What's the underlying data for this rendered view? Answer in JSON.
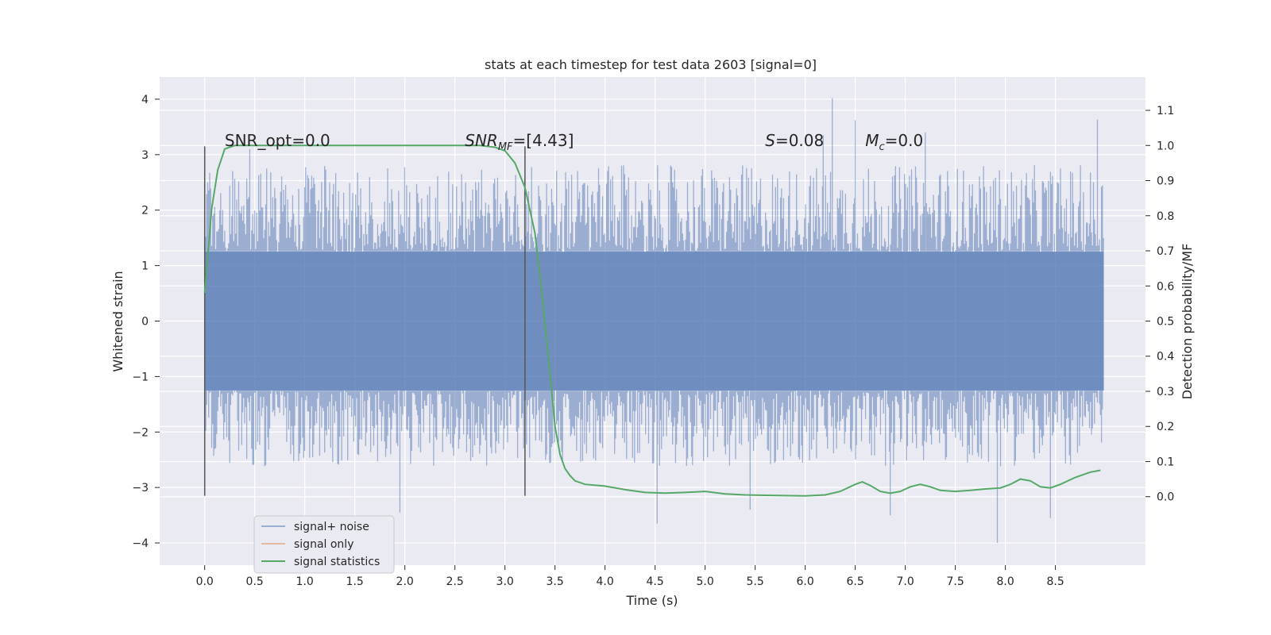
{
  "chart_data": {
    "type": "line",
    "title": "stats at each timestep for test data 2603 [signal=0]",
    "xlabel": "Time (s)",
    "ylabel_left": "Whitened strain",
    "ylabel_right": "Detection probability/MF",
    "xlim": [
      -0.45,
      9.4
    ],
    "ylim_left": [
      -4.4,
      4.4
    ],
    "ylim_right": [
      -0.195,
      1.195
    ],
    "x_ticks": [
      0.0,
      0.5,
      1.0,
      1.5,
      2.0,
      2.5,
      3.0,
      3.5,
      4.0,
      4.5,
      5.0,
      5.5,
      6.0,
      6.5,
      7.0,
      7.5,
      8.0,
      8.5
    ],
    "x_tick_labels": [
      "0.0",
      "0.5",
      "1.0",
      "1.5",
      "2.0",
      "2.5",
      "3.0",
      "3.5",
      "4.0",
      "4.5",
      "5.0",
      "5.5",
      "6.0",
      "6.5",
      "7.0",
      "7.5",
      "8.0",
      "8.5"
    ],
    "y_left_ticks": [
      4,
      3,
      2,
      1,
      0,
      -1,
      -2,
      -3,
      -4
    ],
    "y_left_tick_labels": [
      "4",
      "3",
      "2",
      "1",
      "0",
      "−1",
      "−2",
      "−3",
      "−4"
    ],
    "y_right_ticks": [
      1.1,
      1.0,
      0.9,
      0.8,
      0.7,
      0.6,
      0.5,
      0.4,
      0.3,
      0.2,
      0.1,
      0.0
    ],
    "y_right_tick_labels": [
      "1.1",
      "1.0",
      "0.9",
      "0.8",
      "0.7",
      "0.6",
      "0.5",
      "0.4",
      "0.3",
      "0.2",
      "0.1",
      "0.0"
    ],
    "series": [
      {
        "name": "signal+ noise",
        "color": "#4c72b0",
        "axis": "left",
        "kind": "noise-band",
        "x_range": [
          0.0,
          8.98
        ],
        "core_amplitude": 1.25,
        "envelope_high": 2.5,
        "envelope_low": -2.3,
        "max": 4.02,
        "min": -4.02,
        "peaks": [
          {
            "x": 6.27,
            "y": 4.02
          },
          {
            "x": 8.92,
            "y": 3.63
          },
          {
            "x": 6.5,
            "y": 3.62
          },
          {
            "x": 7.2,
            "y": 3.4
          },
          {
            "x": 6.18,
            "y": 3.35
          },
          {
            "x": 0.45,
            "y": 3.1
          },
          {
            "x": 7.92,
            "y": -4.0
          },
          {
            "x": 4.52,
            "y": -3.65
          },
          {
            "x": 8.45,
            "y": -3.55
          },
          {
            "x": 1.95,
            "y": -3.45
          },
          {
            "x": 5.45,
            "y": -3.4
          },
          {
            "x": 6.85,
            "y": -3.5
          }
        ]
      },
      {
        "name": "signal only",
        "color": "#dd8452",
        "axis": "left",
        "x": [],
        "y": []
      },
      {
        "name": "signal statistics",
        "color": "#55a868",
        "axis": "right",
        "x": [
          0.0,
          0.07,
          0.13,
          0.2,
          0.3,
          0.5,
          1.0,
          1.5,
          2.0,
          2.5,
          2.75,
          2.9,
          3.0,
          3.1,
          3.2,
          3.3,
          3.38,
          3.45,
          3.5,
          3.55,
          3.6,
          3.65,
          3.7,
          3.8,
          4.0,
          4.2,
          4.4,
          4.6,
          4.8,
          5.0,
          5.2,
          5.4,
          5.6,
          5.8,
          6.0,
          6.2,
          6.35,
          6.5,
          6.57,
          6.65,
          6.75,
          6.85,
          6.95,
          7.05,
          7.15,
          7.25,
          7.35,
          7.5,
          7.65,
          7.8,
          7.95,
          8.05,
          8.15,
          8.25,
          8.35,
          8.45,
          8.55,
          8.7,
          8.85,
          8.95
        ],
        "y": [
          0.58,
          0.82,
          0.93,
          0.99,
          1.0,
          1.0,
          1.0,
          1.0,
          1.0,
          1.0,
          1.0,
          0.995,
          0.985,
          0.95,
          0.88,
          0.75,
          0.55,
          0.35,
          0.2,
          0.12,
          0.08,
          0.06,
          0.045,
          0.035,
          0.03,
          0.02,
          0.012,
          0.01,
          0.012,
          0.015,
          0.008,
          0.005,
          0.004,
          0.003,
          0.002,
          0.005,
          0.015,
          0.035,
          0.042,
          0.032,
          0.015,
          0.01,
          0.015,
          0.028,
          0.035,
          0.028,
          0.018,
          0.015,
          0.018,
          0.022,
          0.025,
          0.035,
          0.05,
          0.045,
          0.028,
          0.025,
          0.035,
          0.055,
          0.07,
          0.075
        ]
      }
    ],
    "vlines": [
      {
        "x": 0.0,
        "y0": -3.15,
        "y1": 3.15
      },
      {
        "x": 3.2,
        "y0": -3.15,
        "y1": 3.15
      }
    ],
    "annotations": [
      {
        "x": 0.2,
        "text": "SNR_opt=0.0"
      },
      {
        "x": 2.6,
        "text": "SNR_MF=[4.43]"
      },
      {
        "x": 5.6,
        "text": "S=0.08"
      },
      {
        "x": 6.6,
        "text": "M_c=0.0"
      }
    ],
    "legend": {
      "position": "lower-left",
      "entries": [
        "signal+ noise",
        "signal only",
        "signal statistics"
      ]
    }
  }
}
